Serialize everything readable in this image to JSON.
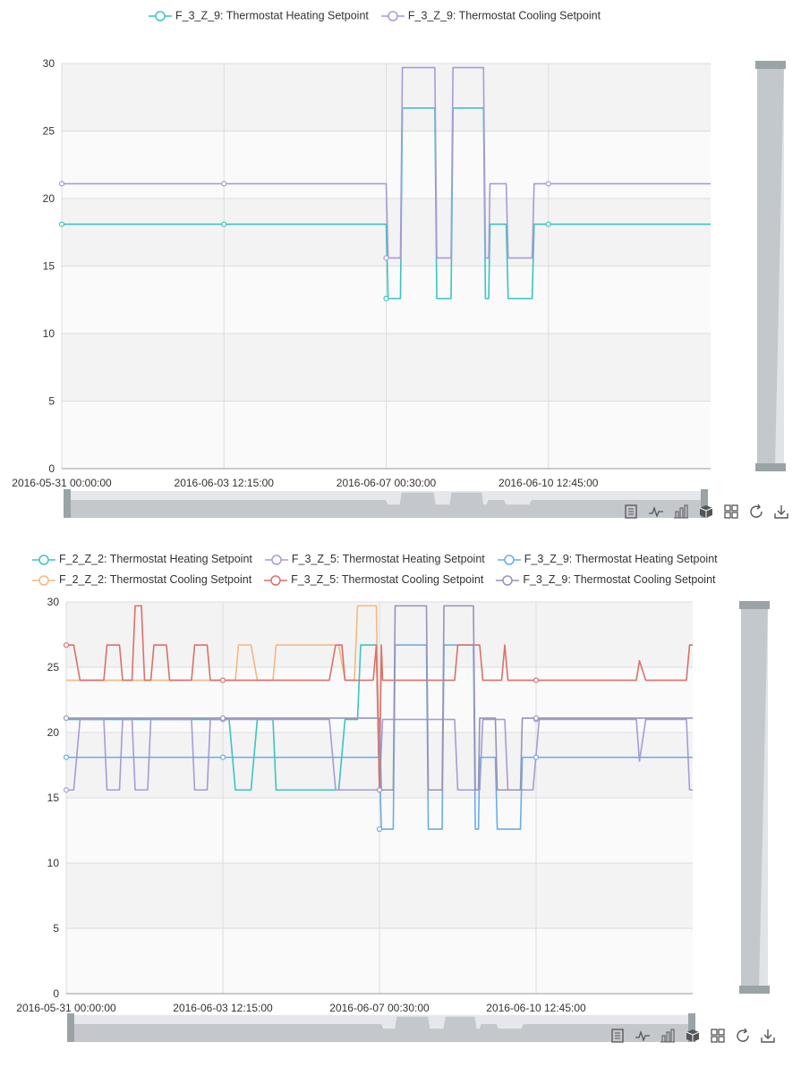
{
  "chart_data": [
    {
      "type": "line",
      "ylim": [
        0,
        30
      ],
      "yticks": [
        0,
        5,
        10,
        15,
        20,
        25,
        30
      ],
      "xticks": [
        "2016-05-31 00:00:00",
        "2016-06-03 12:15:00",
        "2016-06-07 00:30:00",
        "2016-06-10 12:45:00"
      ],
      "series": [
        {
          "name": "F_3_Z_9: Thermostat Heating Setpoint",
          "color": "#3cc4c0",
          "points": [
            [
              0,
              18.1
            ],
            [
              5,
              18.1
            ],
            [
              5.03,
              12.6
            ],
            [
              5.22,
              12.6
            ],
            [
              5.25,
              26.7
            ],
            [
              5.75,
              26.7
            ],
            [
              5.78,
              12.6
            ],
            [
              6.0,
              12.6
            ],
            [
              6.03,
              26.7
            ],
            [
              6.5,
              26.7
            ],
            [
              6.53,
              12.6
            ],
            [
              6.58,
              12.6
            ],
            [
              6.6,
              18.1
            ],
            [
              6.85,
              18.1
            ],
            [
              6.88,
              12.6
            ],
            [
              7.25,
              12.6
            ],
            [
              7.28,
              18.1
            ],
            [
              10,
              18.1
            ]
          ],
          "markers": [
            [
              0,
              18.1
            ],
            [
              2.5,
              18.1
            ],
            [
              5,
              12.6
            ],
            [
              7.5,
              18.1
            ]
          ]
        },
        {
          "name": "F_3_Z_9: Thermostat Cooling Setpoint",
          "color": "#a99ad6",
          "points": [
            [
              0,
              21.1
            ],
            [
              5,
              21.1
            ],
            [
              5.03,
              15.6
            ],
            [
              5.22,
              15.6
            ],
            [
              5.25,
              29.7
            ],
            [
              5.75,
              29.7
            ],
            [
              5.78,
              15.6
            ],
            [
              6.0,
              15.6
            ],
            [
              6.03,
              29.7
            ],
            [
              6.5,
              29.7
            ],
            [
              6.53,
              15.6
            ],
            [
              6.58,
              15.6
            ],
            [
              6.6,
              21.1
            ],
            [
              6.85,
              21.1
            ],
            [
              6.88,
              15.6
            ],
            [
              7.25,
              15.6
            ],
            [
              7.28,
              21.1
            ],
            [
              10,
              21.1
            ]
          ],
          "markers": [
            [
              0,
              21.1
            ],
            [
              2.5,
              21.1
            ],
            [
              5,
              15.6
            ],
            [
              7.5,
              21.1
            ]
          ]
        }
      ]
    },
    {
      "type": "line",
      "ylim": [
        0,
        30
      ],
      "yticks": [
        0,
        5,
        10,
        15,
        20,
        25,
        30
      ],
      "xticks": [
        "2016-05-31 00:00:00",
        "2016-06-03 12:15:00",
        "2016-06-07 00:30:00",
        "2016-06-10 12:45:00"
      ],
      "series": [
        {
          "name": "F_2_Z_2: Thermostat Heating Setpoint",
          "color": "#3cc4c0",
          "points": [
            [
              0,
              21
            ],
            [
              2.6,
              21
            ],
            [
              2.7,
              15.6
            ],
            [
              2.95,
              15.6
            ],
            [
              3.05,
              21
            ],
            [
              3.3,
              21
            ],
            [
              3.35,
              15.6
            ],
            [
              4.35,
              15.6
            ],
            [
              4.45,
              21
            ],
            [
              4.65,
              21
            ],
            [
              4.7,
              26.7
            ],
            [
              4.95,
              26.7
            ],
            [
              5.0,
              15.6
            ]
          ],
          "markers": []
        },
        {
          "name": "F_3_Z_5: Thermostat Heating Setpoint",
          "color": "#a99ad6",
          "points": [
            [
              0,
              15.6
            ],
            [
              0.12,
              15.6
            ],
            [
              0.22,
              21
            ],
            [
              0.6,
              21
            ],
            [
              0.65,
              15.6
            ],
            [
              0.85,
              15.6
            ],
            [
              0.9,
              21
            ],
            [
              1.05,
              21
            ],
            [
              1.1,
              15.6
            ],
            [
              1.3,
              15.6
            ],
            [
              1.35,
              21
            ],
            [
              2.0,
              21
            ],
            [
              2.05,
              15.6
            ],
            [
              2.25,
              15.6
            ],
            [
              2.3,
              21
            ],
            [
              4.2,
              21
            ],
            [
              4.3,
              15.6
            ],
            [
              5.0,
              15.6
            ],
            [
              5.05,
              21
            ],
            [
              6.2,
              21
            ],
            [
              6.25,
              15.6
            ],
            [
              6.6,
              15.6
            ],
            [
              6.65,
              21
            ],
            [
              7.0,
              21
            ],
            [
              7.05,
              15.6
            ],
            [
              7.45,
              15.6
            ],
            [
              7.55,
              21
            ],
            [
              9.1,
              21
            ],
            [
              9.15,
              17.8
            ],
            [
              9.25,
              21
            ],
            [
              9.9,
              21
            ],
            [
              9.95,
              15.6
            ],
            [
              10,
              15.6
            ]
          ],
          "markers": [
            [
              0,
              15.6
            ],
            [
              2.5,
              21
            ],
            [
              7.5,
              21
            ]
          ]
        },
        {
          "name": "F_3_Z_9: Thermostat Heating Setpoint",
          "color": "#6aade4",
          "points": [
            [
              0,
              18.1
            ],
            [
              5,
              18.1
            ],
            [
              5.03,
              12.6
            ],
            [
              5.22,
              12.6
            ],
            [
              5.25,
              26.7
            ],
            [
              5.75,
              26.7
            ],
            [
              5.78,
              12.6
            ],
            [
              6.0,
              12.6
            ],
            [
              6.03,
              26.7
            ],
            [
              6.5,
              26.7
            ],
            [
              6.53,
              12.6
            ],
            [
              6.58,
              12.6
            ],
            [
              6.6,
              18.1
            ],
            [
              6.85,
              18.1
            ],
            [
              6.88,
              12.6
            ],
            [
              7.25,
              12.6
            ],
            [
              7.28,
              18.1
            ],
            [
              10,
              18.1
            ]
          ],
          "markers": [
            [
              0,
              18.1
            ],
            [
              2.5,
              18.1
            ],
            [
              5,
              12.6
            ],
            [
              7.5,
              18.1
            ]
          ]
        },
        {
          "name": "F_2_Z_2: Thermostat Cooling Setpoint",
          "color": "#f5b880",
          "points": [
            [
              0,
              24
            ],
            [
              2.7,
              24
            ],
            [
              2.75,
              26.7
            ],
            [
              2.95,
              26.7
            ],
            [
              3.05,
              24
            ],
            [
              3.3,
              24
            ],
            [
              3.35,
              26.7
            ],
            [
              4.35,
              26.7
            ],
            [
              4.45,
              24
            ],
            [
              4.6,
              24
            ],
            [
              4.65,
              29.7
            ],
            [
              4.95,
              29.7
            ],
            [
              5.0,
              15.6
            ]
          ],
          "markers": []
        },
        {
          "name": "F_3_Z_5: Thermostat Cooling Setpoint",
          "color": "#d9716b",
          "points": [
            [
              0,
              26.7
            ],
            [
              0.12,
              26.7
            ],
            [
              0.22,
              24
            ],
            [
              0.6,
              24
            ],
            [
              0.65,
              26.7
            ],
            [
              0.85,
              26.7
            ],
            [
              0.9,
              24
            ],
            [
              1.05,
              24
            ],
            [
              1.1,
              29.7
            ],
            [
              1.2,
              29.7
            ],
            [
              1.25,
              24
            ],
            [
              1.35,
              24
            ],
            [
              1.4,
              26.7
            ],
            [
              1.6,
              26.7
            ],
            [
              1.65,
              24
            ],
            [
              2.0,
              24
            ],
            [
              2.05,
              26.7
            ],
            [
              2.25,
              26.7
            ],
            [
              2.3,
              24
            ],
            [
              4.2,
              24
            ],
            [
              4.3,
              26.7
            ],
            [
              4.4,
              26.7
            ],
            [
              4.45,
              24
            ],
            [
              4.9,
              24
            ],
            [
              4.95,
              26.7
            ],
            [
              5.0,
              15.6
            ],
            [
              5.03,
              26.7
            ],
            [
              5.05,
              24
            ],
            [
              6.2,
              24
            ],
            [
              6.25,
              26.7
            ],
            [
              6.6,
              26.7
            ],
            [
              6.65,
              24
            ],
            [
              6.95,
              24
            ],
            [
              7.0,
              26.7
            ],
            [
              7.05,
              24
            ],
            [
              9.1,
              24
            ],
            [
              9.15,
              25.5
            ],
            [
              9.25,
              24
            ],
            [
              9.9,
              24
            ],
            [
              9.95,
              26.7
            ],
            [
              10,
              26.7
            ]
          ],
          "markers": [
            [
              0,
              26.7
            ],
            [
              2.5,
              24
            ],
            [
              7.5,
              24
            ]
          ]
        },
        {
          "name": "F_3_Z_9: Thermostat Cooling Setpoint",
          "color": "#9893b6",
          "points": [
            [
              0,
              21.1
            ],
            [
              5,
              21.1
            ],
            [
              5.03,
              15.6
            ],
            [
              5.22,
              15.6
            ],
            [
              5.25,
              29.7
            ],
            [
              5.75,
              29.7
            ],
            [
              5.78,
              15.6
            ],
            [
              6.0,
              15.6
            ],
            [
              6.03,
              29.7
            ],
            [
              6.5,
              29.7
            ],
            [
              6.53,
              15.6
            ],
            [
              6.58,
              15.6
            ],
            [
              6.6,
              21.1
            ],
            [
              6.85,
              21.1
            ],
            [
              6.88,
              15.6
            ],
            [
              7.25,
              15.6
            ],
            [
              7.28,
              21.1
            ],
            [
              10,
              21.1
            ]
          ],
          "markers": [
            [
              0,
              21.1
            ],
            [
              2.5,
              21.1
            ],
            [
              5,
              15.6
            ],
            [
              7.5,
              21.1
            ]
          ]
        }
      ]
    }
  ],
  "toolbox": [
    "data-view-icon",
    "line-chart-icon",
    "bar-chart-icon",
    "stack-icon",
    "tiled-icon",
    "restore-icon",
    "save-image-icon"
  ]
}
